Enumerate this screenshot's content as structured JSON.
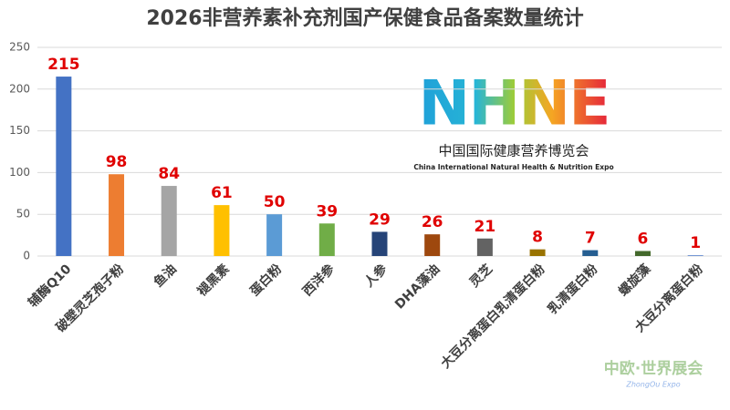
{
  "chart_data": {
    "type": "bar",
    "title": "2026非营养素补充剂国产保健食品备案数量统计",
    "categories": [
      "辅酶Q10",
      "破壁灵芝孢子粉",
      "鱼油",
      "褪黑素",
      "蛋白粉",
      "西洋参",
      "人参",
      "DHA藻油",
      "灵芝",
      "大豆分离蛋白乳清蛋白粉",
      "乳清蛋白粉",
      "螺旋藻",
      "大豆分离蛋白粉"
    ],
    "values": [
      215,
      98,
      84,
      61,
      50,
      39,
      29,
      26,
      21,
      8,
      7,
      6,
      1
    ],
    "colors": [
      "#4472c4",
      "#ed7d31",
      "#a5a5a5",
      "#ffc000",
      "#5b9bd5",
      "#70ad47",
      "#264478",
      "#9e480e",
      "#636363",
      "#997300",
      "#255e91",
      "#43682b",
      "#698ed0"
    ],
    "label_color": "#e00000",
    "ylim": [
      0,
      250
    ],
    "yticks": [
      0,
      50,
      100,
      150,
      200,
      250
    ],
    "grid": true
  },
  "logo": {
    "mark": "NHNE",
    "name": "中国国际健康营养博览会",
    "english": "China International Natural Health & Nutrition Expo"
  },
  "watermark": {
    "name": "中欧·世界展会",
    "english": "ZhongOu Expo"
  }
}
